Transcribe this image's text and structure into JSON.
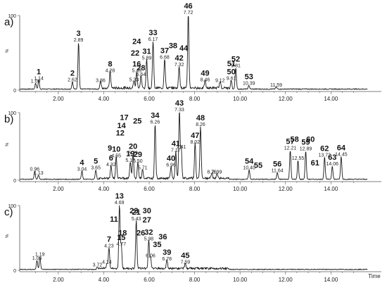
{
  "chart_data": {
    "type": "line",
    "xlabel": "Time",
    "x_ticks": [
      "2.00",
      "4.00",
      "6.00",
      "8.00",
      "10.00",
      "12.00",
      "14.00"
    ],
    "xlim": [
      0.3,
      15.6
    ],
    "panels": [
      {
        "label": "a)",
        "ylabel": "%",
        "y_ticks": [
          "0",
          "100"
        ],
        "peaks": [
          {
            "rt": 1.0,
            "rt_label": "1.00",
            "id": "",
            "h": 8
          },
          {
            "rt": 1.14,
            "rt_label": "1.14",
            "id": "1",
            "h": 12
          },
          {
            "rt": 2.62,
            "rt_label": "2.62",
            "id": "2",
            "h": 10
          },
          {
            "rt": 2.89,
            "rt_label": "2.89",
            "id": "3",
            "h": 63
          },
          {
            "rt": 3.86,
            "rt_label": "3.86",
            "id": "",
            "h": 9
          },
          {
            "rt": 4.28,
            "rt_label": "4.28",
            "id": "8",
            "h": 22
          },
          {
            "rt": 5.33,
            "rt_label": "5.33",
            "id": "",
            "h": 10
          },
          {
            "rt": 5.45,
            "rt_label": "5.45",
            "id": "16",
            "h": 22
          },
          {
            "rt": 5.64,
            "rt_label": "5.64",
            "id": "28",
            "h": 17
          },
          {
            "rt": 5.89,
            "rt_label": "5.89",
            "id": "31",
            "h": 39
          },
          {
            "rt": 6.17,
            "rt_label": "6.17",
            "id": "33",
            "h": 64
          },
          {
            "rt": 6.68,
            "rt_label": "6.68",
            "id": "37",
            "h": 40
          },
          {
            "rt": 7.32,
            "rt_label": "7.32",
            "id": "42",
            "h": 30
          },
          {
            "rt": 7.72,
            "rt_label": "7.72",
            "id": "46",
            "h": 100
          },
          {
            "rt": 8.46,
            "rt_label": "8.46",
            "id": "49",
            "h": 10
          },
          {
            "rt": 9.12,
            "rt_label": "9.12",
            "id": "",
            "h": 9
          },
          {
            "rt": 9.61,
            "rt_label": "9.61",
            "id": "50",
            "h": 12
          },
          {
            "rt": 9.81,
            "rt_label": "9.81",
            "id": "52",
            "h": 29
          },
          {
            "rt": 10.39,
            "rt_label": "10.39",
            "id": "53",
            "h": 5
          },
          {
            "rt": 11.59,
            "rt_label": "11.59",
            "id": "",
            "h": 3
          }
        ],
        "extra_labels": [
          {
            "id": "24",
            "rt": 5.45,
            "h": 62
          },
          {
            "id": "22",
            "rt": 5.38,
            "h": 46
          },
          {
            "id": "38",
            "rt": 7.05,
            "h": 56
          },
          {
            "id": "44",
            "rt": 7.52,
            "h": 53
          },
          {
            "id": "51",
            "rt": 9.62,
            "h": 32
          }
        ]
      },
      {
        "label": "b)",
        "ylabel": "%",
        "y_ticks": [
          "0",
          "100"
        ],
        "peaks": [
          {
            "rt": 0.96,
            "rt_label": "0.96",
            "id": "",
            "h": 12
          },
          {
            "rt": 1.13,
            "rt_label": "1.13",
            "id": "",
            "h": 6
          },
          {
            "rt": 3.04,
            "rt_label": "3.04",
            "id": "4",
            "h": 12
          },
          {
            "rt": 3.65,
            "rt_label": "3.65",
            "id": "5",
            "h": 14
          },
          {
            "rt": 4.32,
            "rt_label": "4.32",
            "id": "6",
            "h": 19
          },
          {
            "rt": 4.55,
            "rt_label": "4.55",
            "id": "10",
            "h": 32
          },
          {
            "rt": 5.17,
            "rt_label": "5.17",
            "id": "19",
            "h": 25
          },
          {
            "rt": 5.29,
            "rt_label": "5.29",
            "id": "20",
            "h": 36
          },
          {
            "rt": 5.5,
            "rt_label": "5.50",
            "id": "29",
            "h": 24
          },
          {
            "rt": 5.71,
            "rt_label": "5.71",
            "id": "",
            "h": 14
          },
          {
            "rt": 6.26,
            "rt_label": "6.26",
            "id": "34",
            "h": 82
          },
          {
            "rt": 6.96,
            "rt_label": "6.96",
            "id": "40",
            "h": 18
          },
          {
            "rt": 7.17,
            "rt_label": "7.17",
            "id": "41",
            "h": 40
          },
          {
            "rt": 7.33,
            "rt_label": "7.33",
            "id": "43",
            "h": 100
          },
          {
            "rt": 7.41,
            "rt_label": "7.41",
            "id": "",
            "h": 45
          },
          {
            "rt": 8.02,
            "rt_label": "8.02",
            "id": "47",
            "h": 52
          },
          {
            "rt": 8.26,
            "rt_label": "8.26",
            "id": "48",
            "h": 78
          },
          {
            "rt": 8.76,
            "rt_label": "8.76",
            "id": "",
            "h": 8
          },
          {
            "rt": 8.99,
            "rt_label": "8.99",
            "id": "",
            "h": 8
          },
          {
            "rt": 10.4,
            "rt_label": "10.40",
            "id": "54",
            "h": 14
          },
          {
            "rt": 11.64,
            "rt_label": "11.64",
            "id": "56",
            "h": 10
          },
          {
            "rt": 12.21,
            "rt_label": "12.21",
            "id": "57",
            "h": 43
          },
          {
            "rt": 12.55,
            "rt_label": "12.55",
            "id": "",
            "h": 28
          },
          {
            "rt": 12.89,
            "rt_label": "12.89",
            "id": "59",
            "h": 42
          },
          {
            "rt": 13.72,
            "rt_label": "13.72",
            "id": "62",
            "h": 33
          },
          {
            "rt": 14.06,
            "rt_label": "14.06",
            "id": "63",
            "h": 20
          },
          {
            "rt": 14.45,
            "rt_label": "14.45",
            "id": "64",
            "h": 34
          }
        ],
        "extra_labels": [
          {
            "id": "17",
            "rt": 4.9,
            "h": 89
          },
          {
            "id": "14",
            "rt": 4.78,
            "h": 77
          },
          {
            "id": "12",
            "rt": 4.72,
            "h": 66
          },
          {
            "id": "9",
            "rt": 4.27,
            "h": 44
          },
          {
            "id": "25",
            "rt": 5.48,
            "h": 84
          },
          {
            "id": "55",
            "rt": 10.8,
            "h": 18
          },
          {
            "id": "58",
            "rt": 12.4,
            "h": 57
          },
          {
            "id": "60",
            "rt": 13.1,
            "h": 57
          },
          {
            "id": "61",
            "rt": 13.3,
            "h": 22
          }
        ]
      },
      {
        "label": "c)",
        "ylabel": "%",
        "y_ticks": [
          "0",
          "100"
        ],
        "peaks": [
          {
            "rt": 1.06,
            "rt_label": "1.06",
            "id": "",
            "h": 14
          },
          {
            "rt": 1.19,
            "rt_label": "1.19",
            "id": "",
            "h": 20
          },
          {
            "rt": 3.72,
            "rt_label": "3.72",
            "id": "",
            "h": 4
          },
          {
            "rt": 4.14,
            "rt_label": "4.14",
            "id": "",
            "h": 8
          },
          {
            "rt": 4.23,
            "rt_label": "4.23",
            "id": "7",
            "h": 33
          },
          {
            "rt": 4.69,
            "rt_label": "4.69",
            "id": "13",
            "h": 100
          },
          {
            "rt": 4.77,
            "rt_label": "4.77",
            "id": "15",
            "h": 36
          },
          {
            "rt": 5.43,
            "rt_label": "5.43",
            "id": "21",
            "h": 75
          },
          {
            "rt": 5.98,
            "rt_label": "5.98",
            "id": "32",
            "h": 44
          },
          {
            "rt": 6.06,
            "rt_label": "6.06",
            "id": "",
            "h": 18
          },
          {
            "rt": 6.78,
            "rt_label": "6.78",
            "id": "39",
            "h": 13
          },
          {
            "rt": 7.59,
            "rt_label": "7.59",
            "id": "45",
            "h": 8
          }
        ],
        "extra_labels": [
          {
            "id": "11",
            "rt": 4.45,
            "h": 75
          },
          {
            "id": "18",
            "rt": 4.83,
            "h": 54
          },
          {
            "id": "23",
            "rt": 5.33,
            "h": 88
          },
          {
            "id": "30",
            "rt": 5.9,
            "h": 88
          },
          {
            "id": "27",
            "rt": 5.9,
            "h": 74
          },
          {
            "id": "26",
            "rt": 5.63,
            "h": 54
          },
          {
            "id": "36",
            "rt": 6.6,
            "h": 48
          },
          {
            "id": "35",
            "rt": 6.35,
            "h": 36
          }
        ]
      }
    ]
  }
}
